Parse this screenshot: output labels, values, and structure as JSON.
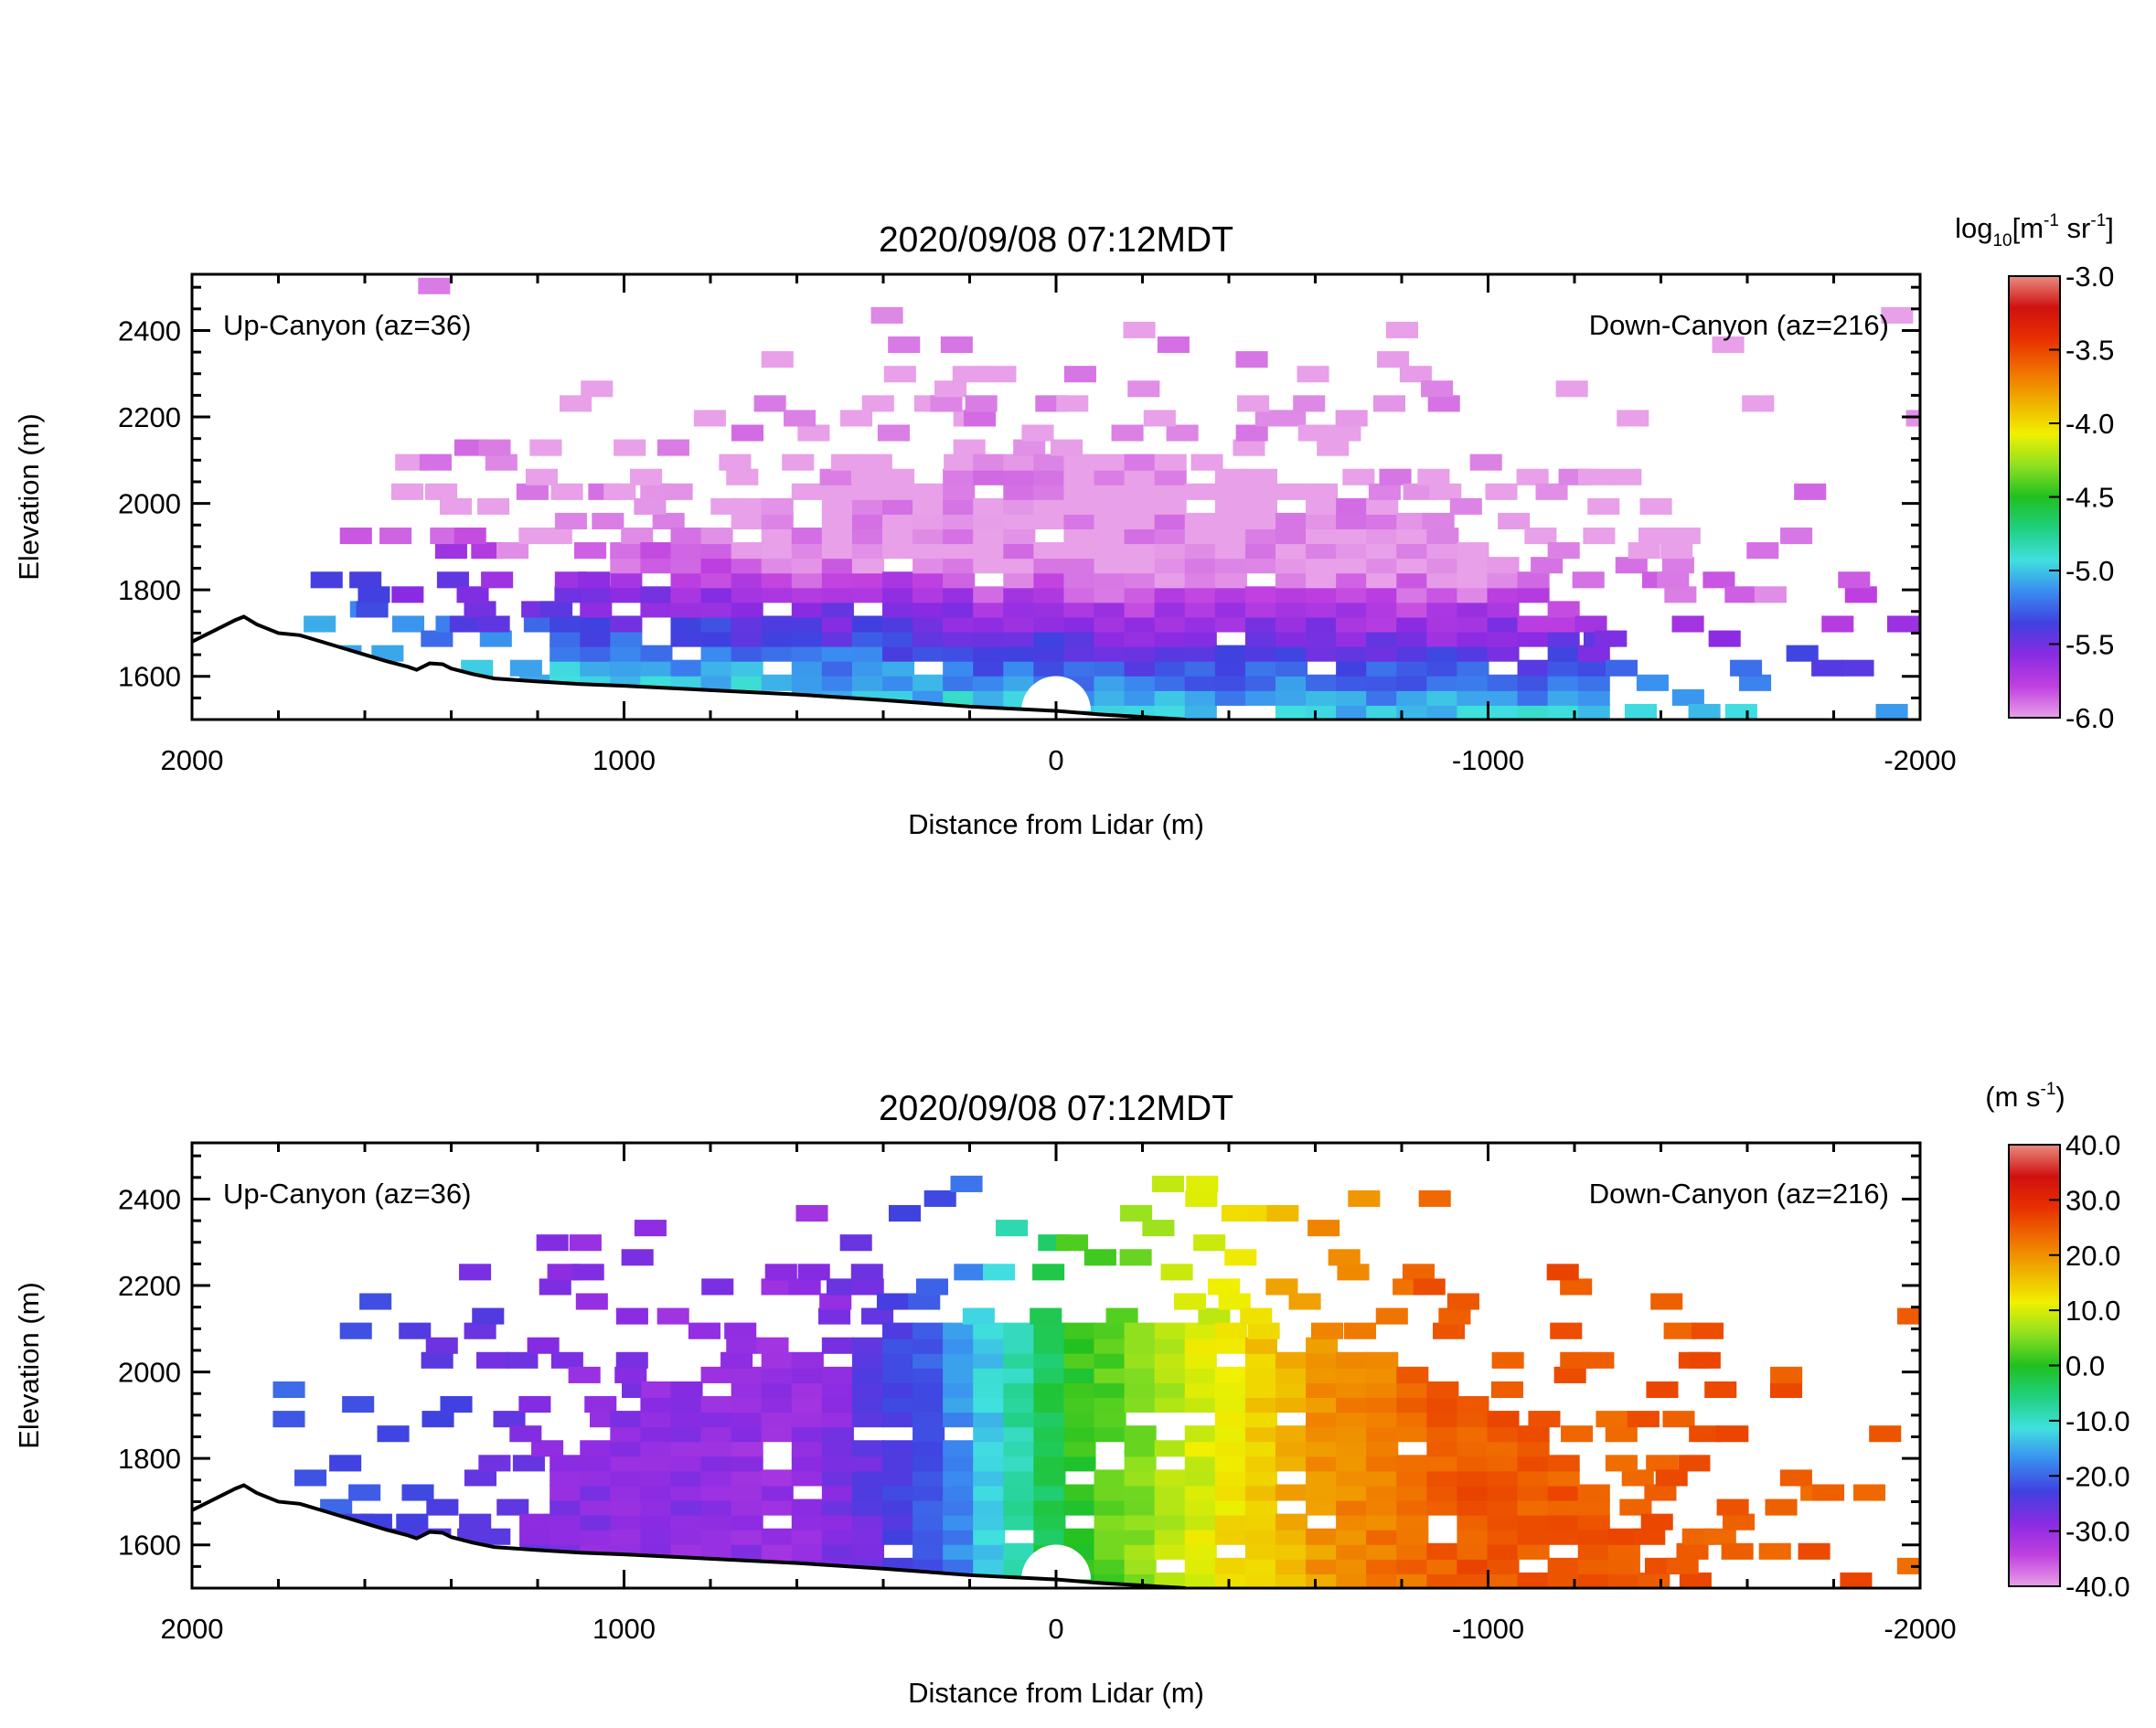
{
  "chart_data": [
    {
      "type": "heatmap",
      "title": "2020/09/08 07:12MDT",
      "xlabel": "Distance from Lidar (m)",
      "ylabel": "Elevation (m)",
      "xlim": [
        2000,
        -2000
      ],
      "ylim": [
        1500,
        2530
      ],
      "x_ticks": [
        2000,
        1000,
        0,
        -1000,
        -2000
      ],
      "x_tick_labels": [
        "2000",
        "1000",
        "0",
        "-1000",
        "-2000"
      ],
      "y_ticks": [
        1600,
        1800,
        2000,
        2200,
        2400
      ],
      "y_tick_labels": [
        "1600",
        "1800",
        "2000",
        "2200",
        "2400"
      ],
      "annotations": [
        "Up-Canyon (az=36)",
        "Down-Canyon (az=216)"
      ],
      "colorbar": {
        "unit_base": "log",
        "unit_sub": "10",
        "unit_main": "[m",
        "unit_sup1": "-1",
        "unit_sr": " sr",
        "unit_sup2": "-1",
        "unit_end": "]",
        "range": [
          -6.0,
          -3.0
        ],
        "ticks": [
          -3.0,
          -3.5,
          -4.0,
          -4.5,
          -5.0,
          -5.5,
          -6.0
        ],
        "tick_labels": [
          "-3.0",
          "-3.5",
          "-4.0",
          "-4.5",
          "-5.0",
          "-5.5",
          "-6.0"
        ],
        "colors": [
          "#e8a0e8",
          "#c040e0",
          "#8a2be2",
          "#4040e0",
          "#3a8cf0",
          "#40e0e0",
          "#20d080",
          "#20c020",
          "#90e020",
          "#f0f000",
          "#f0b000",
          "#f07000",
          "#e83000",
          "#d01010",
          "#e88c80"
        ]
      },
      "terrain": {
        "x": [
          2000,
          1950,
          1900,
          1880,
          1850,
          1800,
          1750,
          1700,
          1650,
          1600,
          1550,
          1500,
          1480,
          1450,
          1420,
          1400,
          1350,
          1300,
          1200,
          1100,
          1000,
          800,
          600,
          400,
          200,
          0,
          -100,
          -200,
          -300
        ],
        "elevation": [
          1680,
          1705,
          1730,
          1738,
          1720,
          1700,
          1695,
          1680,
          1665,
          1650,
          1635,
          1622,
          1615,
          1630,
          1628,
          1618,
          1605,
          1595,
          1588,
          1582,
          1578,
          1568,
          1558,
          1545,
          1530,
          1520,
          1512,
          1506,
          1500
        ]
      },
      "data_extent": {
        "x": [
          1800,
          -2000
        ],
        "elevation": [
          1500,
          2500
        ]
      },
      "dominant_value_near_surface": -5.0,
      "dominant_value_aloft": -6.0
    },
    {
      "type": "heatmap",
      "title": "2020/09/08 07:12MDT",
      "xlabel": "Distance from Lidar (m)",
      "ylabel": "Elevation (m)",
      "xlim": [
        2000,
        -2000
      ],
      "ylim": [
        1500,
        2530
      ],
      "x_ticks": [
        2000,
        1000,
        0,
        -1000,
        -2000
      ],
      "x_tick_labels": [
        "2000",
        "1000",
        "0",
        "-1000",
        "-2000"
      ],
      "y_ticks": [
        1600,
        1800,
        2000,
        2200,
        2400
      ],
      "y_tick_labels": [
        "1600",
        "1800",
        "2000",
        "2200",
        "2400"
      ],
      "annotations": [
        "Up-Canyon (az=36)",
        "Down-Canyon (az=216)"
      ],
      "colorbar": {
        "unit_main": "(m s",
        "unit_sup1": "-1",
        "unit_end": ")",
        "range": [
          -40.0,
          40.0
        ],
        "ticks": [
          40.0,
          30.0,
          20.0,
          10.0,
          0.0,
          -10.0,
          -20.0,
          -30.0,
          -40.0
        ],
        "tick_labels": [
          "40.0",
          "30.0",
          "20.0",
          "10.0",
          "0.0",
          "-10.0",
          "-20.0",
          "-30.0",
          "-40.0"
        ],
        "colors": [
          "#e8a0e8",
          "#c040e0",
          "#8a2be2",
          "#4040e0",
          "#3a8cf0",
          "#40e0e0",
          "#20d080",
          "#20c020",
          "#90e020",
          "#f0f000",
          "#f0b000",
          "#f07000",
          "#e83000",
          "#d01010",
          "#e88c80"
        ]
      },
      "terrain": {
        "x": [
          2000,
          1950,
          1900,
          1880,
          1850,
          1800,
          1750,
          1700,
          1650,
          1600,
          1550,
          1500,
          1480,
          1450,
          1420,
          1400,
          1350,
          1300,
          1200,
          1100,
          1000,
          800,
          600,
          400,
          200,
          0,
          -100,
          -200,
          -300
        ],
        "elevation": [
          1680,
          1705,
          1730,
          1738,
          1720,
          1700,
          1695,
          1680,
          1665,
          1650,
          1635,
          1622,
          1615,
          1630,
          1628,
          1618,
          1605,
          1595,
          1588,
          1582,
          1578,
          1568,
          1558,
          1545,
          1530,
          1520,
          1512,
          1506,
          1500
        ]
      },
      "data_extent": {
        "x": [
          1800,
          -2000
        ],
        "elevation": [
          1500,
          2450
        ]
      },
      "velocity_by_distance": {
        "x": [
          1800,
          1200,
          600,
          300,
          0,
          -300,
          -600,
          -900,
          -1100
        ],
        "value": [
          -20,
          -28,
          -30,
          -20,
          0,
          10,
          20,
          25,
          25
        ]
      }
    }
  ]
}
